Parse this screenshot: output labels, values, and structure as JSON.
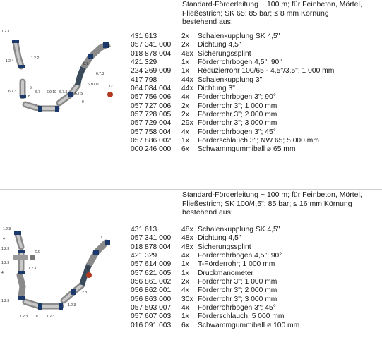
{
  "sections": [
    {
      "heading": [
        "Standard-Förderleitung ~ 100 m; für Feinbeton, Mörtel,",
        "Fließestrich; SK 65; 85 bar; ≤ 8 mm Körnung",
        "bestehend aus:"
      ],
      "parts": [
        {
          "art": "431 613",
          "qty": "2x",
          "desc": "Schalenkupplung SK 4,5\""
        },
        {
          "art": "057 341 000",
          "qty": "2x",
          "desc": "Dichtung 4,5\""
        },
        {
          "art": "018 878 004",
          "qty": "46x",
          "desc": "Sicherungssplint"
        },
        {
          "art": "421 329",
          "qty": "1x",
          "desc": "Förderrohrbogen 4,5\"; 90°"
        },
        {
          "art": "224 269 009",
          "qty": "1x",
          "desc": "Reduzierrohr 100/65 - 4,5\"/3,5\"; 1 000 mm"
        },
        {
          "art": "417 798",
          "qty": "44x",
          "desc": "Schalenkupplung 3\""
        },
        {
          "art": "064 084 004",
          "qty": "44x",
          "desc": "Dichtung 3\""
        },
        {
          "art": "057 756 006",
          "qty": "4x",
          "desc": "Förderrohrbogen 3\"; 90°"
        },
        {
          "art": "057 727 006",
          "qty": "2x",
          "desc": "Förderrohr 3\"; 1 000 mm"
        },
        {
          "art": "057 728 005",
          "qty": "2x",
          "desc": "Förderrohr 3\"; 2 000 mm"
        },
        {
          "art": "057 729 004",
          "qty": "29x",
          "desc": "Förderrohr 3\"; 3 000 mm"
        },
        {
          "art": "057 758 004",
          "qty": "4x",
          "desc": "Förderrohrbogen 3\"; 45°"
        },
        {
          "art": "057 886 002",
          "qty": "1x",
          "desc": "Förderschlauch 3\"; NW 65; 5 000 mm"
        },
        {
          "art": "000 246 000",
          "qty": "6x",
          "desc": "Schwammgummiball ø 65 mm"
        }
      ],
      "labels": [
        "1.2.3",
        "1",
        "1.2.4",
        "1.2.2",
        "5",
        "6.7.3",
        "8",
        "6.9.10",
        "6.7",
        "6.7.3",
        "6.7.5",
        "6.10.11",
        "9",
        "6.7.3",
        "6.7",
        "11",
        "12"
      ]
    },
    {
      "heading": [
        "Standard-Förderleitung ~ 100 m; für Feinbeton, Mörtel,",
        "Fließestrich; SK 100/4,5\"; 85 bar; ≤ 16 mm Körnung",
        "bestehend aus:"
      ],
      "parts": [
        {
          "art": "431 613",
          "qty": "48x",
          "desc": "Schalenkupplung SK 4,5\""
        },
        {
          "art": "057 341 000",
          "qty": "48x",
          "desc": "Dichtung 4,5\""
        },
        {
          "art": "018 878 004",
          "qty": "48x",
          "desc": "Sicherungssplint"
        },
        {
          "art": "421 329",
          "qty": "4x",
          "desc": "Förderrohrbogen 4,5\"; 90°"
        },
        {
          "art": "057 614 009",
          "qty": "1x",
          "desc": "T-Förderrohr; 1 000 mm"
        },
        {
          "art": "057 621 005",
          "qty": "1x",
          "desc": "Druckmanometer"
        },
        {
          "art": "056 861 002",
          "qty": "2x",
          "desc": "Förderrohr 3\"; 1 000 mm"
        },
        {
          "art": "056 862 001",
          "qty": "4x",
          "desc": "Förderrohr 3\"; 2 000 mm"
        },
        {
          "art": "056 863 000",
          "qty": "30x",
          "desc": "Förderrohr 3\"; 3 000 mm"
        },
        {
          "art": "057 593 007",
          "qty": "4x",
          "desc": "Förderrohrbogen 3\"; 45°"
        },
        {
          "art": "057 607 003",
          "qty": "1x",
          "desc": "Förderschlauch; 5 000 mm"
        },
        {
          "art": "016 091 003",
          "qty": "6x",
          "desc": "Schwammgummiball ø 100 mm"
        }
      ],
      "labels": [
        "1.2.3",
        "4",
        "1.2.3",
        "5.6",
        "1.2.3",
        "4",
        "1.2.3",
        "1.2.3",
        "1.2.3",
        "10",
        "1.2.3",
        "1.2.3",
        "1.2.3",
        "11",
        "12"
      ]
    }
  ]
}
